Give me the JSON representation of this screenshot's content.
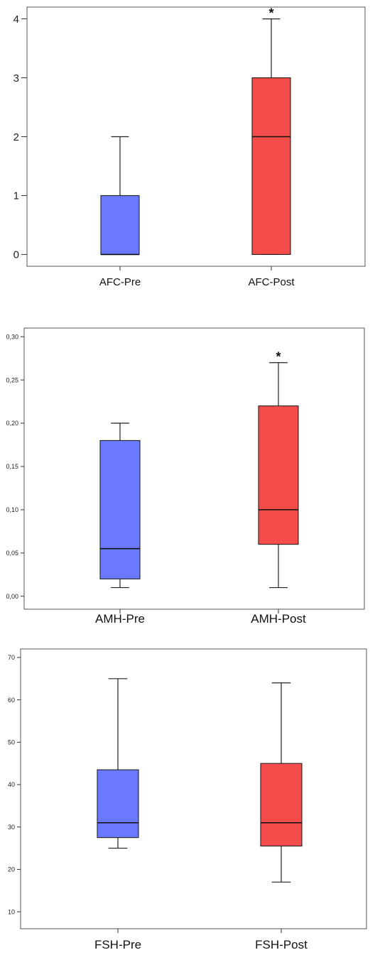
{
  "colors": {
    "pre": "#6a79ff",
    "post": "#f44b4b",
    "axis": "#333333",
    "frame": "#555555"
  },
  "chart_data": [
    {
      "type": "box",
      "title": "",
      "xlabel": "",
      "ylabel": "",
      "ylim": [
        -0.2,
        4.2
      ],
      "y_ticks": [
        0,
        1,
        2,
        3,
        4
      ],
      "y_tick_labels": [
        "0",
        "1",
        "2",
        "3",
        "4"
      ],
      "categories": [
        "AFC-Pre",
        "AFC-Post"
      ],
      "series": [
        {
          "category": "AFC-Pre",
          "whisker_low": 0,
          "q1": 0,
          "median": 0,
          "q3": 1,
          "whisker_high": 2,
          "color": "#6a79ff",
          "annotation": ""
        },
        {
          "category": "AFC-Post",
          "whisker_low": 0,
          "q1": 0,
          "median": 2,
          "q3": 3,
          "whisker_high": 4,
          "color": "#f44b4b",
          "annotation": "*"
        }
      ]
    },
    {
      "type": "box",
      "title": "",
      "xlabel": "",
      "ylabel": "",
      "ylim": [
        -0.015,
        0.31
      ],
      "y_ticks": [
        0,
        0.05,
        0.1,
        0.15,
        0.2,
        0.25,
        0.3
      ],
      "y_tick_labels": [
        "0,00",
        "0,05",
        "0,10",
        "0,15",
        "0,20",
        "0,25",
        "0,30"
      ],
      "categories": [
        "AMH-Pre",
        "AMH-Post"
      ],
      "series": [
        {
          "category": "AMH-Pre",
          "whisker_low": 0.01,
          "q1": 0.02,
          "median": 0.055,
          "q3": 0.18,
          "whisker_high": 0.2,
          "color": "#6a79ff",
          "annotation": ""
        },
        {
          "category": "AMH-Post",
          "whisker_low": 0.01,
          "q1": 0.06,
          "median": 0.1,
          "q3": 0.22,
          "whisker_high": 0.27,
          "color": "#f44b4b",
          "annotation": "*"
        }
      ]
    },
    {
      "type": "box",
      "title": "",
      "xlabel": "",
      "ylabel": "",
      "ylim": [
        6,
        72
      ],
      "y_ticks": [
        10,
        20,
        30,
        40,
        50,
        60,
        70
      ],
      "y_tick_labels": [
        "10",
        "20",
        "30",
        "40",
        "50",
        "60",
        "70"
      ],
      "categories": [
        "FSH-Pre",
        "FSH-Post"
      ],
      "series": [
        {
          "category": "FSH-Pre",
          "whisker_low": 25,
          "q1": 27.5,
          "median": 31,
          "q3": 43.5,
          "whisker_high": 65,
          "color": "#6a79ff",
          "annotation": ""
        },
        {
          "category": "FSH-Post",
          "whisker_low": 17,
          "q1": 25.5,
          "median": 31,
          "q3": 45,
          "whisker_high": 64,
          "color": "#f44b4b",
          "annotation": ""
        }
      ]
    }
  ]
}
